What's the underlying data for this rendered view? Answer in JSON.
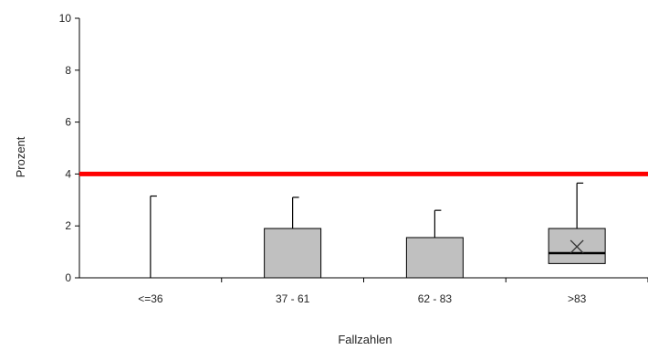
{
  "chart_data": {
    "type": "box",
    "title": "",
    "xlabel": "Fallzahlen",
    "ylabel": "Prozent",
    "ylim": [
      0,
      10
    ],
    "yticks": [
      0,
      2,
      4,
      6,
      8,
      10
    ],
    "categories": [
      "<=36",
      "37 - 61",
      "62 - 83",
      ">83"
    ],
    "boxes": [
      {
        "category": "<=36",
        "min": 0,
        "q1": 0,
        "median": 0,
        "q3": 0,
        "max": 3.15,
        "mean": null
      },
      {
        "category": "37 - 61",
        "min": 0,
        "q1": 0,
        "median": 0,
        "q3": 1.9,
        "max": 3.1,
        "mean": null
      },
      {
        "category": "62 - 83",
        "min": 0,
        "q1": 0,
        "median": 0,
        "q3": 1.55,
        "max": 2.6,
        "mean": null
      },
      {
        "category": ">83",
        "min": 0.55,
        "q1": 0.55,
        "median": 0.95,
        "q3": 1.9,
        "max": 3.65,
        "mean": 1.2
      }
    ],
    "reference_line": {
      "value": 4,
      "color": "#ff0000"
    },
    "grid": false,
    "colors": {
      "box_fill": "#c0c0c0",
      "stroke": "#000000"
    }
  }
}
